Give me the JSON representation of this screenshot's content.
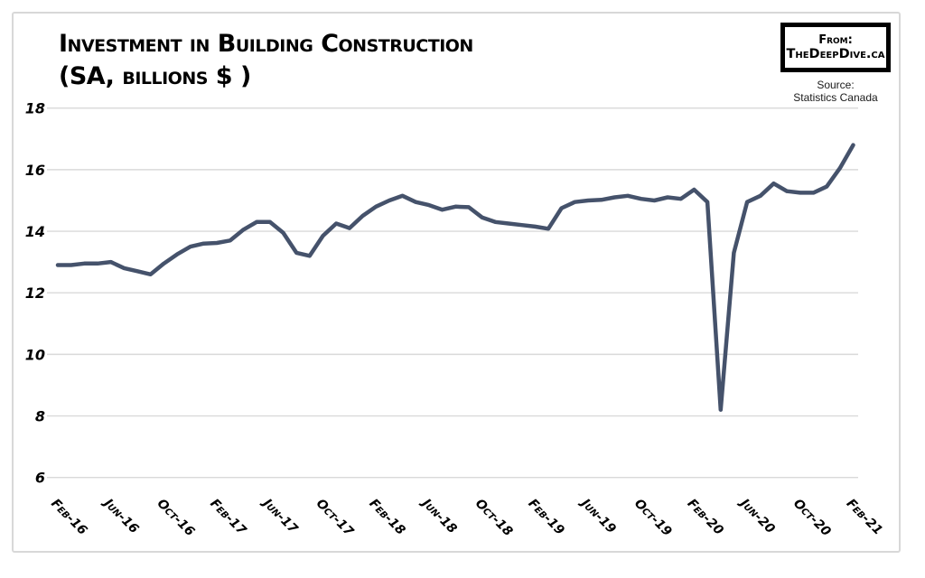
{
  "header": {
    "title_line1": "Investment in Building Construction",
    "title_line2": "(SA, billions $ )",
    "badge": {
      "line1": "From:",
      "line2": "TheDeepDive.ca"
    },
    "source": {
      "line1": "Source:",
      "line2": "Statistics Canada"
    }
  },
  "colors": {
    "line": "#45526b",
    "grid": "#d9d9d9",
    "frame_border": "#d8d8d8",
    "text": "#000000"
  },
  "chart_data": {
    "type": "line",
    "title": "Investment in Building Construction (SA, billions $)",
    "xlabel": "",
    "ylabel": "",
    "legend": "none",
    "grid": "horizontal",
    "ylim": [
      6,
      18
    ],
    "y_ticks": [
      6,
      8,
      10,
      12,
      14,
      16,
      18
    ],
    "x_tick_labels": [
      "Feb-16",
      "Jun-16",
      "Oct-16",
      "Feb-17",
      "Jun-17",
      "Oct-17",
      "Feb-18",
      "Jun-18",
      "Oct-18",
      "Feb-19",
      "Jun-19",
      "Oct-19",
      "Feb-20",
      "Jun-20",
      "Oct-20",
      "Feb-21"
    ],
    "series_name": "Investment in building construction, seasonally adjusted, billions of dollars",
    "months": [
      "Feb-16",
      "Mar-16",
      "Apr-16",
      "May-16",
      "Jun-16",
      "Jul-16",
      "Aug-16",
      "Sep-16",
      "Oct-16",
      "Nov-16",
      "Dec-16",
      "Jan-17",
      "Feb-17",
      "Mar-17",
      "Apr-17",
      "May-17",
      "Jun-17",
      "Jul-17",
      "Aug-17",
      "Sep-17",
      "Oct-17",
      "Nov-17",
      "Dec-17",
      "Jan-18",
      "Feb-18",
      "Mar-18",
      "Apr-18",
      "May-18",
      "Jun-18",
      "Jul-18",
      "Aug-18",
      "Sep-18",
      "Oct-18",
      "Nov-18",
      "Dec-18",
      "Jan-19",
      "Feb-19",
      "Mar-19",
      "Apr-19",
      "May-19",
      "Jun-19",
      "Jul-19",
      "Aug-19",
      "Sep-19",
      "Oct-19",
      "Nov-19",
      "Dec-19",
      "Jan-20",
      "Feb-20",
      "Mar-20",
      "Apr-20",
      "May-20",
      "Jun-20",
      "Jul-20",
      "Aug-20",
      "Sep-20",
      "Oct-20",
      "Nov-20",
      "Dec-20",
      "Jan-21",
      "Feb-21"
    ],
    "values": [
      12.9,
      12.9,
      12.95,
      12.95,
      13.0,
      12.8,
      12.7,
      12.6,
      12.95,
      13.25,
      13.5,
      13.6,
      13.62,
      13.7,
      14.05,
      14.3,
      14.3,
      13.95,
      13.3,
      13.2,
      13.85,
      14.25,
      14.1,
      14.5,
      14.8,
      15.0,
      15.15,
      14.95,
      14.85,
      14.7,
      14.8,
      14.78,
      14.45,
      14.3,
      14.25,
      14.2,
      14.15,
      14.08,
      14.75,
      14.95,
      15.0,
      15.02,
      15.1,
      15.15,
      15.05,
      15.0,
      15.1,
      15.05,
      15.35,
      14.95,
      8.2,
      13.3,
      14.95,
      15.15,
      15.55,
      15.3,
      15.25,
      15.25,
      15.45,
      16.05,
      16.8
    ]
  }
}
